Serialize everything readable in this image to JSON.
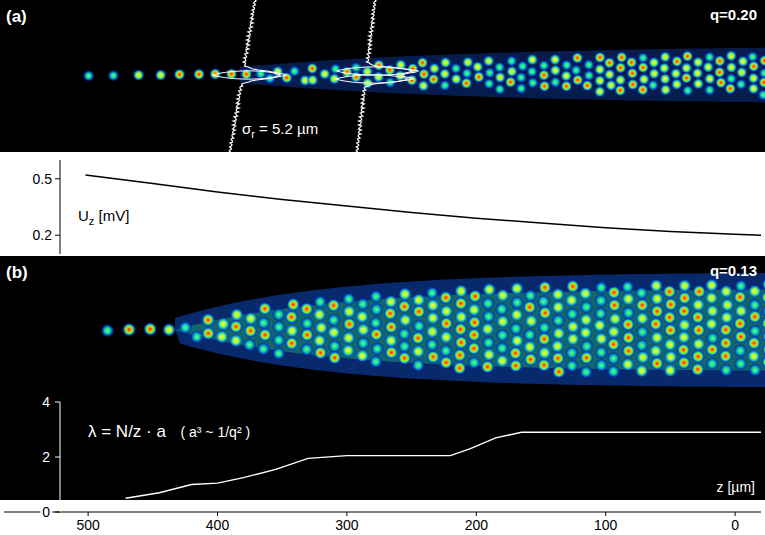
{
  "panel_a": {
    "label": "(a)",
    "q": "q=0.20",
    "sigma": {
      "symbol": "σ",
      "subscript": "r",
      "text": " = 5.2 µm"
    }
  },
  "panel_b": {
    "label": "(b)",
    "q": "q=0.13"
  },
  "chart_data": [
    {
      "type": "line",
      "y_label": {
        "symbol": "U",
        "subscript": "z",
        "text": " [mV]"
      },
      "x": [
        502,
        450,
        400,
        350,
        300,
        250,
        200,
        150,
        100,
        50,
        0,
        -20
      ],
      "values": [
        0.52,
        0.475,
        0.43,
        0.39,
        0.355,
        0.32,
        0.29,
        0.265,
        0.24,
        0.22,
        0.205,
        0.2
      ],
      "xlim": [
        565,
        -20
      ],
      "ylim": [
        0.1,
        0.6
      ],
      "yticks": [
        0.5,
        0.2
      ],
      "tick_labels": "y",
      "color": "#000000"
    },
    {
      "type": "line",
      "annotation": "λ = N/z · a",
      "annotation_2": "( a³ ~ 1/q² )",
      "x_label": "z [µm]",
      "x": [
        471,
        445,
        420,
        400,
        380,
        355,
        330,
        300,
        220,
        205,
        185,
        165,
        100,
        0,
        -20
      ],
      "values": [
        0.5,
        0.7,
        1.0,
        1.05,
        1.25,
        1.55,
        1.95,
        2.05,
        2.05,
        2.3,
        2.7,
        2.9,
        2.9,
        2.9,
        2.9
      ],
      "xlim": [
        565,
        -20
      ],
      "ylim": [
        0,
        4
      ],
      "xticks": [
        500,
        400,
        300,
        200,
        100,
        0
      ],
      "yticks": [
        0,
        2,
        4
      ],
      "color": "#ffffff"
    }
  ]
}
